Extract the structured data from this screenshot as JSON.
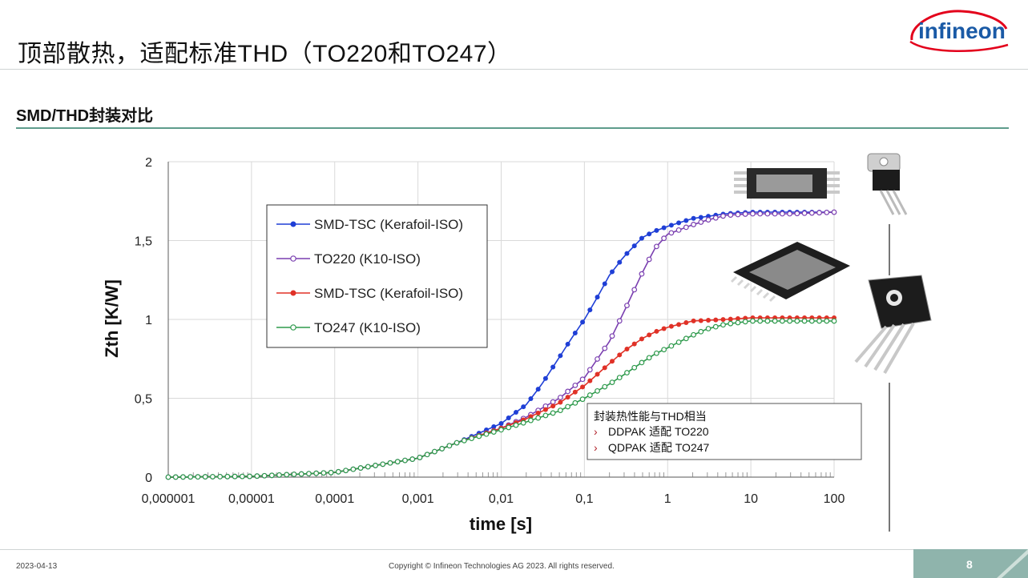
{
  "slide": {
    "title": "顶部散热，适配标准THD（TO220和TO247）",
    "subtitle": "SMD/THD封装对比",
    "logo_text": "infineon",
    "date": "2023-04-13",
    "copyright": "Copyright © Infineon Technologies AG 2023. All rights reserved.",
    "page_number": "8",
    "colors": {
      "accent": "#5e9c8c",
      "logo_red": "#e3001b",
      "logo_blue": "#1a5aa6"
    }
  },
  "annotation": {
    "heading": "封装热性能与THD相当",
    "bullets": [
      "DDPAK 适配 TO220",
      "QDPAK 适配 TO247"
    ],
    "bullet_marker": "›"
  },
  "chart_data": {
    "type": "line",
    "xlabel": "time [s]",
    "ylabel": "Zth [K/W]",
    "xscale": "log",
    "xlim": [
      1e-06,
      100
    ],
    "ylim": [
      0,
      2
    ],
    "x_ticks": [
      "0,000001",
      "0,00001",
      "0,0001",
      "0,001",
      "0,01",
      "0,1",
      "1",
      "10",
      "100"
    ],
    "y_ticks": [
      "0",
      "0,5",
      "1",
      "1,5",
      "2"
    ],
    "grid": true,
    "legend_position": "upper-left",
    "series": [
      {
        "name": "SMD-TSC (Kerafoil-ISO)",
        "color": "#1f3fd6",
        "marker": "filled",
        "x": [
          1e-06,
          1e-05,
          0.0001,
          0.001,
          0.003,
          0.01,
          0.02,
          0.03,
          0.05,
          0.07,
          0.1,
          0.15,
          0.2,
          0.3,
          0.5,
          0.7,
          1,
          2,
          5,
          10,
          30,
          100
        ],
        "y": [
          0,
          0.005,
          0.03,
          0.12,
          0.22,
          0.34,
          0.46,
          0.58,
          0.76,
          0.88,
          1.0,
          1.16,
          1.28,
          1.4,
          1.52,
          1.56,
          1.59,
          1.64,
          1.67,
          1.68,
          1.68,
          1.68
        ]
      },
      {
        "name": "TO220 (K10-ISO)",
        "color": "#7a3fb0",
        "marker": "hollow",
        "x": [
          1e-06,
          1e-05,
          0.0001,
          0.001,
          0.003,
          0.01,
          0.02,
          0.05,
          0.1,
          0.2,
          0.3,
          0.5,
          0.7,
          1,
          2,
          3,
          5,
          10,
          30,
          100
        ],
        "y": [
          0,
          0.005,
          0.03,
          0.12,
          0.22,
          0.31,
          0.38,
          0.5,
          0.63,
          0.86,
          1.05,
          1.3,
          1.45,
          1.54,
          1.6,
          1.63,
          1.66,
          1.67,
          1.67,
          1.68
        ]
      },
      {
        "name": "SMD-TSC (Kerafoil-ISO)",
        "color": "#e03127",
        "marker": "filled",
        "x": [
          1e-06,
          1e-05,
          0.0001,
          0.001,
          0.003,
          0.01,
          0.02,
          0.05,
          0.1,
          0.2,
          0.3,
          0.5,
          0.7,
          1,
          2,
          5,
          10,
          30,
          100
        ],
        "y": [
          0,
          0.005,
          0.03,
          0.12,
          0.22,
          0.31,
          0.37,
          0.47,
          0.58,
          0.72,
          0.8,
          0.88,
          0.92,
          0.95,
          0.99,
          1.0,
          1.01,
          1.01,
          1.01
        ]
      },
      {
        "name": "TO247 (K10-ISO)",
        "color": "#2e9a4c",
        "marker": "hollow",
        "x": [
          1e-06,
          1e-05,
          0.0001,
          0.001,
          0.003,
          0.01,
          0.02,
          0.05,
          0.1,
          0.2,
          0.3,
          0.5,
          0.7,
          1,
          2,
          3,
          5,
          10,
          30,
          100
        ],
        "y": [
          0,
          0.005,
          0.03,
          0.12,
          0.22,
          0.3,
          0.35,
          0.42,
          0.5,
          0.59,
          0.65,
          0.73,
          0.78,
          0.82,
          0.9,
          0.94,
          0.97,
          0.99,
          0.99,
          0.99
        ]
      }
    ]
  }
}
